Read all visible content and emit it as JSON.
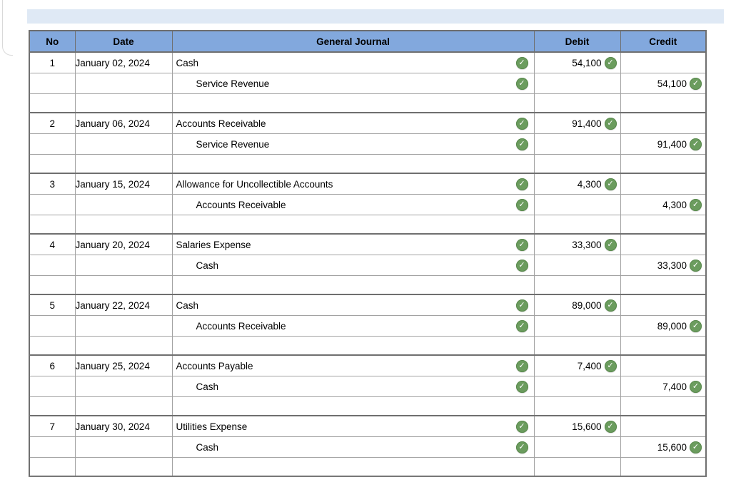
{
  "page": {
    "background": "#ffffff",
    "top_strip_color": "#dfe9f5"
  },
  "icons": {
    "check_glyph": "✓",
    "check_name": "check-circle-icon",
    "check_color": "#6b9c5e"
  },
  "table": {
    "header_bg": "#82a8dd",
    "row_tint": "#f3f6ee",
    "headers": {
      "no": "No",
      "date": "Date",
      "journal": "General Journal",
      "debit": "Debit",
      "credit": "Credit"
    },
    "entries": [
      {
        "no": "1",
        "date": "January 02, 2024",
        "debit_account": "Cash",
        "credit_account": "Service Revenue",
        "debit_amount": "54,100",
        "credit_amount": "54,100"
      },
      {
        "no": "2",
        "date": "January 06, 2024",
        "debit_account": "Accounts Receivable",
        "credit_account": "Service Revenue",
        "debit_amount": "91,400",
        "credit_amount": "91,400"
      },
      {
        "no": "3",
        "date": "January 15, 2024",
        "debit_account": "Allowance for Uncollectible Accounts",
        "credit_account": "Accounts Receivable",
        "debit_amount": "4,300",
        "credit_amount": "4,300"
      },
      {
        "no": "4",
        "date": "January 20, 2024",
        "debit_account": "Salaries Expense",
        "credit_account": "Cash",
        "debit_amount": "33,300",
        "credit_amount": "33,300"
      },
      {
        "no": "5",
        "date": "January 22, 2024",
        "debit_account": "Cash",
        "credit_account": "Accounts Receivable",
        "debit_amount": "89,000",
        "credit_amount": "89,000"
      },
      {
        "no": "6",
        "date": "January 25, 2024",
        "debit_account": "Accounts Payable",
        "credit_account": "Cash",
        "debit_amount": "7,400",
        "credit_amount": "7,400"
      },
      {
        "no": "7",
        "date": "January 30, 2024",
        "debit_account": "Utilities Expense",
        "credit_account": "Cash",
        "debit_amount": "15,600",
        "credit_amount": "15,600"
      }
    ]
  }
}
